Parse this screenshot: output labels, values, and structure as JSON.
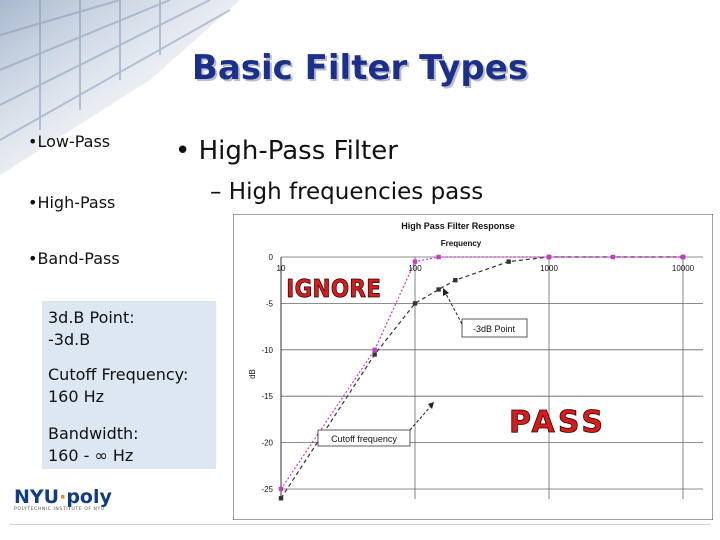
{
  "title": "Basic Filter Types",
  "sidebar": {
    "items": [
      "•Low-Pass",
      "•High-Pass",
      "•Band-Pass"
    ]
  },
  "main": {
    "bullet": "• High-Pass Filter",
    "sub_bullet": "– High frequencies pass"
  },
  "info_box": {
    "point_label": "3d.B Point:\n-3d.B",
    "cutoff_label": "Cutoff Frequency:\n160 Hz",
    "bandwidth_label": "Bandwidth:\n160 - ∞ Hz"
  },
  "logo": {
    "name_a": "NYU",
    "dot": "·",
    "name_b": "poly",
    "tagline": "POLYTECHNIC INSTITUTE OF NYU"
  },
  "chart_data": {
    "type": "line",
    "title": "High Pass Filter Response",
    "xlabel": "Frequency",
    "ylabel": "dB",
    "x_scale": "log",
    "xlim": [
      10,
      10000
    ],
    "ylim": [
      -25,
      0
    ],
    "x_ticks": [
      "10",
      "100",
      "1000",
      "10000"
    ],
    "y_ticks": [
      "0",
      "-5",
      "-10",
      "-15",
      "-20",
      "-25"
    ],
    "grid": true,
    "series": [
      {
        "values": [
          [
            10,
            -26
          ],
          [
            50,
            -10.5
          ],
          [
            100,
            -5
          ],
          [
            150,
            -3.5
          ],
          [
            200,
            -2.5
          ],
          [
            500,
            -0.5
          ],
          [
            1000,
            0
          ],
          [
            10000,
            0
          ]
        ]
      },
      {
        "values": [
          [
            10,
            -25
          ],
          [
            50,
            -10
          ],
          [
            100,
            -0.5
          ],
          [
            150,
            0
          ],
          [
            1000,
            0
          ],
          [
            3000,
            0
          ],
          [
            10000,
            0
          ]
        ]
      }
    ],
    "annotations": [
      "-3dB Point",
      "Cutoff frequency",
      "IGNORE",
      "PASS"
    ],
    "colors": {
      "line_black": "#333333",
      "line_magenta": "#c33cc3",
      "ignore": "#d81b1b",
      "pass": "#d81b1b"
    }
  }
}
